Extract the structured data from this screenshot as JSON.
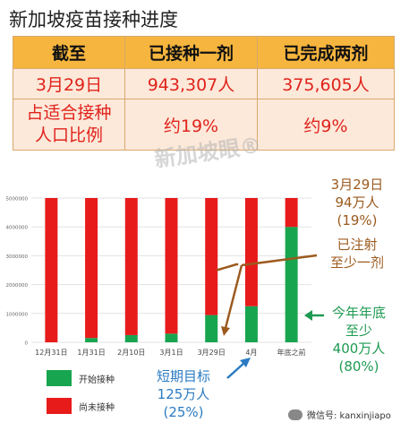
{
  "title": "新加坡疫苗接种进度",
  "table": {
    "headers": [
      "截至",
      "已接种一剂",
      "已完成两剂"
    ],
    "rows": [
      [
        "3月29日",
        "943,307人",
        "375,605人"
      ],
      [
        "占适合接种人口比例",
        "约19%",
        "约9%"
      ]
    ],
    "row2_label_lines": [
      "占适合接种",
      "人口比例"
    ]
  },
  "watermark": "新加坡眼®",
  "chart_data": {
    "type": "bar",
    "stacked": true,
    "categories": [
      "12月31日",
      "1月31日",
      "2月10日",
      "3月1日",
      "3月29日",
      "4月",
      "年底之前"
    ],
    "series": [
      {
        "name": "开始接种",
        "color": "#18a550",
        "values": [
          0,
          150000,
          250000,
          300000,
          943307,
          1250000,
          4000000
        ]
      },
      {
        "name": "尚未接种",
        "color": "#e81b1b",
        "values": [
          5000000,
          4850000,
          4750000,
          4700000,
          4056693,
          3750000,
          1000000
        ]
      }
    ],
    "yticks": [
      0,
      1000000,
      2000000,
      3000000,
      4000000,
      5000000
    ],
    "ylim": [
      0,
      5000000
    ],
    "grid": true,
    "legend": "bottom-left"
  },
  "annotations": {
    "march29": {
      "lines": [
        "3月29日",
        "94万人",
        "(19%)"
      ]
    },
    "injected": {
      "lines": [
        "已注射",
        "至少一剂"
      ]
    },
    "year_end": {
      "lines": [
        "今年年底",
        "至少",
        "400万人",
        "(80%)"
      ]
    },
    "short_term": {
      "lines": [
        "短期目标",
        "125万人",
        "(25%)"
      ]
    }
  },
  "wechat": {
    "label": "微信号: kanxinjiapo"
  },
  "colors": {
    "green": "#18a550",
    "red": "#e81b1b",
    "header": "#f6b53e",
    "rowbg": "#fce9da",
    "brown": "#9c5a1e",
    "blue": "#2a7bc2",
    "annotgreen": "#1f9a52"
  }
}
